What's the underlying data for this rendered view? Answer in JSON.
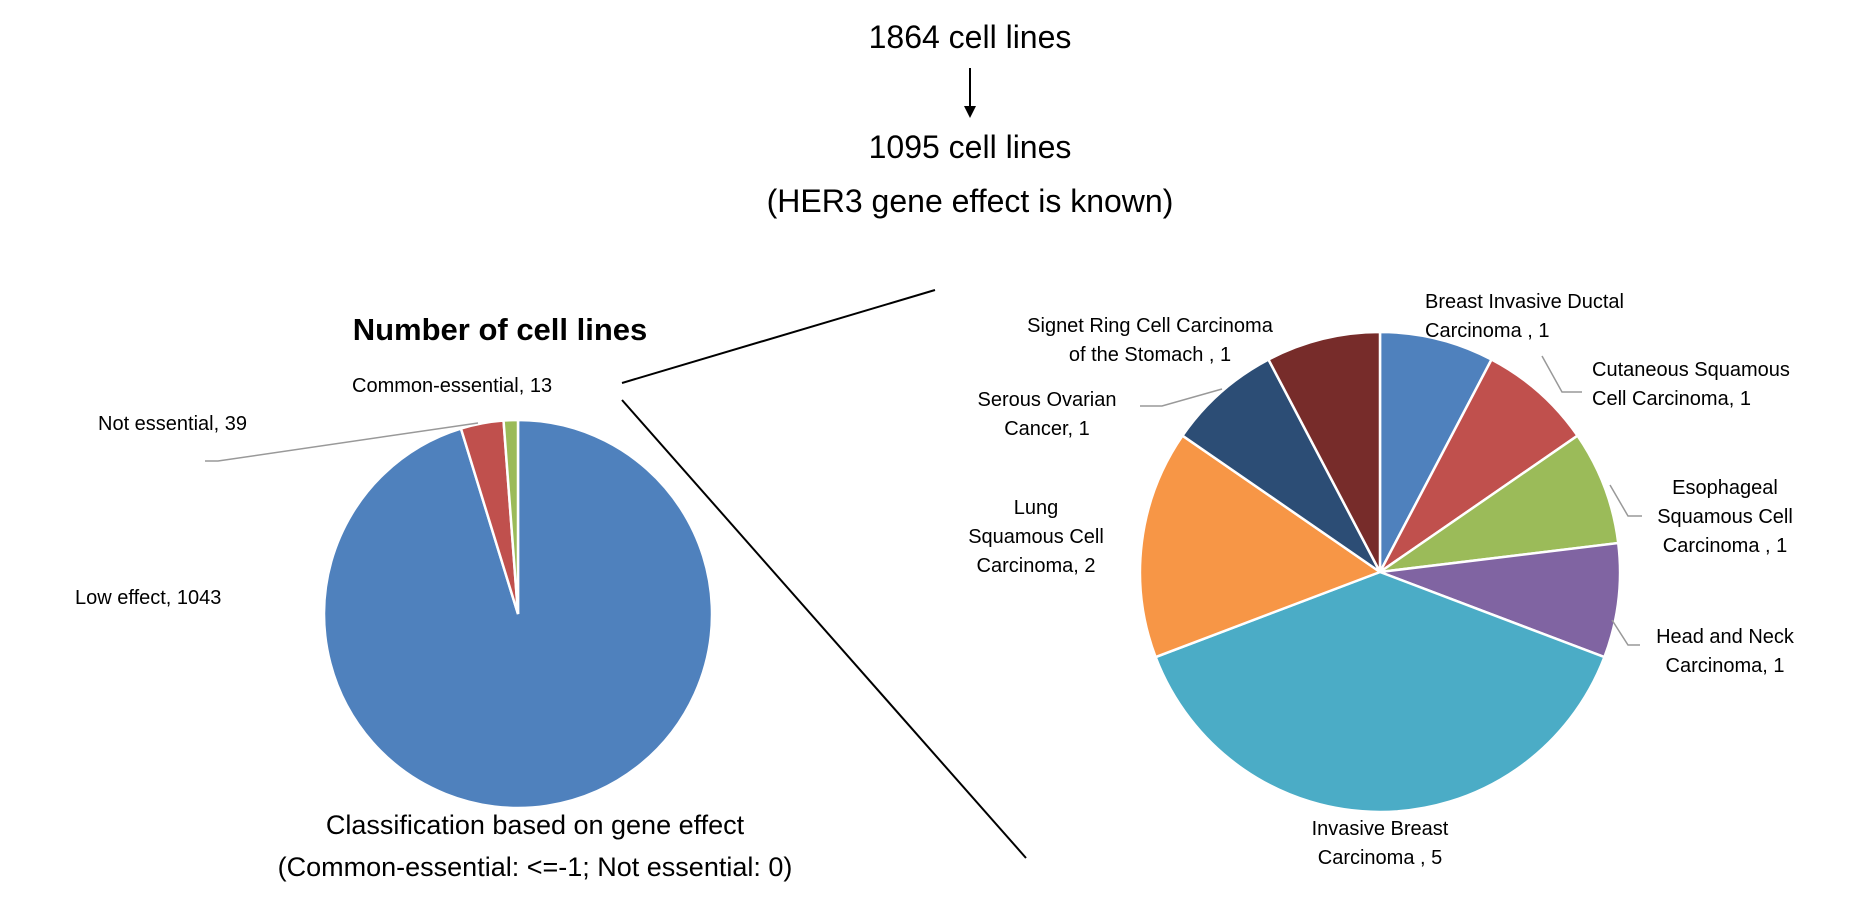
{
  "header": {
    "line1": "1864 cell lines",
    "line2": "1095 cell lines",
    "line3": "(HER3 gene effect is known)"
  },
  "chart_data": [
    {
      "type": "pie",
      "title": "Number of cell lines",
      "caption": [
        "Classification based on gene effect",
        "(Common-essential: <=-1; Not essential: 0)"
      ],
      "slices": [
        {
          "label": "Low effect, 1043",
          "name": "Low effect",
          "value": 1043,
          "color": "#4F81BD"
        },
        {
          "label": "Not essential, 39",
          "name": "Not essential",
          "value": 39,
          "color": "#C0504D"
        },
        {
          "label": "Common-essential, 13",
          "name": "Common-essential",
          "value": 13,
          "color": "#9BBB59"
        }
      ]
    },
    {
      "type": "pie",
      "title": "",
      "slices": [
        {
          "label": [
            "Breast Invasive  Ductal",
            "Carcinoma    , 1"
          ],
          "name": "Breast Invasive Ductal Carcinoma",
          "value": 1,
          "color": "#4F81BD"
        },
        {
          "label": [
            "Cutaneous Squamous",
            "Cell Carcinoma, 1"
          ],
          "name": "Cutaneous Squamous Cell Carcinoma",
          "value": 1,
          "color": "#C0504D"
        },
        {
          "label": [
            "Esophageal",
            "Squamous Cell",
            "Carcinoma , 1"
          ],
          "name": "Esophageal Squamous Cell Carcinoma",
          "value": 1,
          "color": "#9BBB59"
        },
        {
          "label": [
            "Head and Neck",
            "Carcinoma, 1"
          ],
          "name": "Head and Neck Carcinoma",
          "value": 1,
          "color": "#8064A2"
        },
        {
          "label": [
            "Invasive  Breast",
            "Carcinoma , 5"
          ],
          "name": "Invasive Breast Carcinoma",
          "value": 5,
          "color": "#4BACC6"
        },
        {
          "label": [
            "Lung",
            "Squamous Cell",
            "Carcinoma, 2"
          ],
          "name": "Lung Squamous Cell Carcinoma",
          "value": 2,
          "color": "#F79646"
        },
        {
          "label": [
            "Serous Ovarian",
            "Cancer, 1"
          ],
          "name": "Serous Ovarian Cancer",
          "value": 1,
          "color": "#2C4D75"
        },
        {
          "label": [
            "Signet Ring Cell Carcinoma",
            "of the Stomach , 1"
          ],
          "name": "Signet Ring Cell Carcinoma of the Stomach",
          "value": 1,
          "color": "#772C2A"
        }
      ]
    }
  ]
}
